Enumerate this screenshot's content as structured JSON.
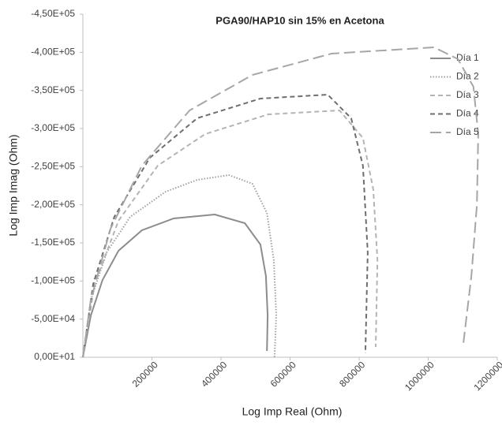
{
  "chart_data": {
    "type": "line",
    "title": "PGA90/HAP10 sin 15% en Acetona",
    "x_label": "Log Imp Real (Ohm)",
    "y_label": "Log Imp Imag (Ohm)",
    "xlim": [
      0,
      1200000
    ],
    "xticks": [
      200000,
      400000,
      600000,
      800000,
      1000000,
      1200000
    ],
    "ylim": [
      0,
      -450000
    ],
    "yticks": [
      {
        "value": -450000,
        "label": "-4,50E+05"
      },
      {
        "value": -400000,
        "label": "-4,00E+05"
      },
      {
        "value": -350000,
        "label": "-3,50E+05"
      },
      {
        "value": -300000,
        "label": "-3,00E+05"
      },
      {
        "value": -250000,
        "label": "-2,50E+05"
      },
      {
        "value": -200000,
        "label": "-2,00E+05"
      },
      {
        "value": -150000,
        "label": "-1,50E+05"
      },
      {
        "value": -100000,
        "label": "-1,00E+05"
      },
      {
        "value": -50000,
        "label": "-5,00E+04"
      },
      {
        "value": 0,
        "label": "0,00E+01"
      }
    ],
    "grid": false,
    "legend": "right",
    "series": [
      {
        "name": "Día 1",
        "color": "#8c8c8c",
        "style": "solid",
        "x": [
          0,
          23000,
          57000,
          103000,
          171000,
          263000,
          382000,
          469000,
          514000,
          530000,
          535000,
          533000
        ],
        "values": [
          0,
          -54800,
          -101400,
          -139700,
          -166600,
          -182100,
          -187200,
          -175900,
          -147900,
          -106600,
          -54800,
          -8300
        ]
      },
      {
        "name": "Día 2",
        "color": "#a0a0a0",
        "style": "dotted",
        "x": [
          0,
          23000,
          69000,
          137000,
          240000,
          331000,
          423000,
          491000,
          533000,
          553000,
          560000,
          555000
        ],
        "values": [
          0,
          -75500,
          -137600,
          -184100,
          -217200,
          -232700,
          -239000,
          -227600,
          -189300,
          -127200,
          -54800,
          0
        ]
      },
      {
        "name": "Día 3",
        "color": "#b4b4b4",
        "style": "dashed",
        "x": [
          0,
          34000,
          103000,
          217000,
          354000,
          537000,
          743000,
          811000,
          841000,
          853000,
          848000
        ],
        "values": [
          0,
          -96200,
          -179000,
          -251400,
          -292800,
          -318600,
          -323800,
          -287600,
          -220300,
          -127200,
          -13400
        ]
      },
      {
        "name": "Día 4",
        "color": "#6e6e6e",
        "style": "dashed",
        "x": [
          0,
          30000,
          91000,
          194000,
          331000,
          514000,
          709000,
          777000,
          811000,
          825000,
          818000
        ],
        "values": [
          0,
          -96200,
          -184100,
          -261700,
          -313500,
          -339300,
          -344500,
          -313500,
          -251400,
          -137600,
          -5200
        ]
      },
      {
        "name": "Día 5",
        "color": "#a6a6a6",
        "style": "longdash",
        "x": [
          0,
          23000,
          80000,
          171000,
          309000,
          491000,
          720000,
          1017000,
          1086000,
          1131000,
          1145000,
          1141000,
          1125000,
          1102000
        ],
        "values": [
          0,
          -75500,
          -168600,
          -251400,
          -323800,
          -370300,
          -398300,
          -406600,
          -391100,
          -354900,
          -292800,
          -199700,
          -106600,
          -18600
        ]
      }
    ]
  }
}
